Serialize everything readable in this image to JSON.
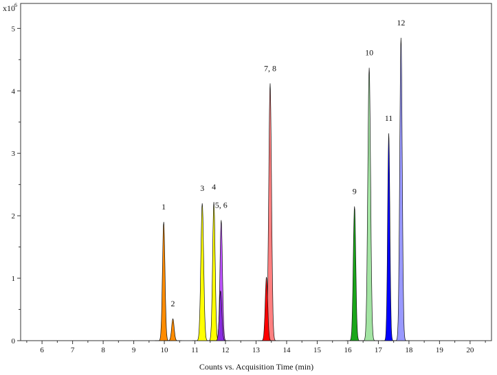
{
  "chart_data": {
    "type": "area",
    "title": "",
    "xlabel": "Counts vs. Acquisition Time (min)",
    "ylabel": "",
    "y_scale_label": "x10",
    "y_scale_exponent": "6",
    "xlim": [
      5.3,
      20.7
    ],
    "ylim": [
      0,
      5.4
    ],
    "x_ticks": [
      6,
      7,
      8,
      9,
      10,
      11,
      12,
      13,
      14,
      15,
      16,
      17,
      18,
      19,
      20
    ],
    "y_ticks": [
      0,
      1,
      2,
      3,
      4,
      5
    ],
    "x_tick_labels": [
      "6",
      "7",
      "8",
      "9",
      "10",
      "11",
      "12",
      "13",
      "14",
      "15",
      "16",
      "17",
      "18",
      "19",
      "20"
    ],
    "y_tick_labels": [
      "0",
      "1",
      "2",
      "3",
      "4",
      "5"
    ],
    "peaks": [
      {
        "label": "1",
        "rt": 9.98,
        "height": 1.9,
        "width": 0.09,
        "color": "#ff8c00"
      },
      {
        "label": "2",
        "rt": 10.28,
        "height": 0.35,
        "width": 0.09,
        "color": "#ff8c00"
      },
      {
        "label": "3",
        "rt": 11.24,
        "height": 2.2,
        "width": 0.1,
        "color": "#ffff00"
      },
      {
        "label": "4",
        "rt": 11.62,
        "height": 2.22,
        "width": 0.09,
        "color": "#ffff00"
      },
      {
        "label": "5, 6",
        "rt": 11.86,
        "height": 1.93,
        "width": 0.09,
        "color": "#bf55ff"
      },
      {
        "label": "",
        "rt": 11.84,
        "height": 0.8,
        "width": 0.09,
        "color": "#8a2be2"
      },
      {
        "label": "7, 8",
        "rt": 13.46,
        "height": 4.12,
        "width": 0.1,
        "color": "#ff8080"
      },
      {
        "label": "",
        "rt": 13.34,
        "height": 1.02,
        "width": 0.09,
        "color": "#ff0000"
      },
      {
        "label": "9",
        "rt": 16.22,
        "height": 2.15,
        "width": 0.09,
        "color": "#1aa61a"
      },
      {
        "label": "10",
        "rt": 16.7,
        "height": 4.37,
        "width": 0.1,
        "color": "#a3e4a3"
      },
      {
        "label": "11",
        "rt": 17.34,
        "height": 3.32,
        "width": 0.08,
        "color": "#0000ff"
      },
      {
        "label": "12",
        "rt": 17.74,
        "height": 4.85,
        "width": 0.09,
        "color": "#9999ff"
      }
    ],
    "grid": false,
    "legend": "none"
  }
}
